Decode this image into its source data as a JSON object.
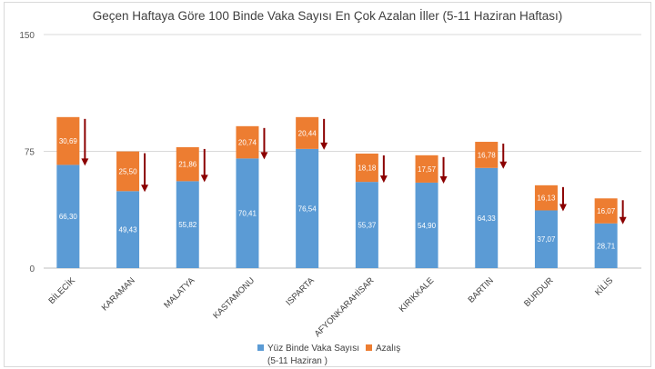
{
  "chart_data": {
    "type": "bar",
    "stacked": true,
    "title": "Geçen Haftaya Göre 100 Binde Vaka Sayısı En Çok Azalan İller (5-11 Haziran Haftası)",
    "categories": [
      "BİLECİK",
      "KARAMAN",
      "MALATYA",
      "KASTAMONU",
      "ISPARTA",
      "AFYONKARAHİSAR",
      "KIRIKKALE",
      "BARTIN",
      "BURDUR",
      "KİLİS"
    ],
    "series": [
      {
        "name": "Yüz Binde Vaka Sayısı",
        "name_line2": "(5-11 Haziran )",
        "color": "#5b9bd5",
        "values": [
          66.3,
          49.43,
          55.82,
          70.41,
          76.54,
          55.37,
          54.9,
          64.33,
          37.07,
          28.71
        ],
        "labels": [
          "66,30",
          "49,43",
          "55,82",
          "70,41",
          "76,54",
          "55,37",
          "54,90",
          "64,33",
          "37,07",
          "28,71"
        ]
      },
      {
        "name": "Azalış",
        "color": "#ed7d31",
        "values": [
          30.69,
          25.5,
          21.86,
          20.74,
          20.44,
          18.18,
          17.57,
          16.78,
          16.13,
          16.07
        ],
        "labels": [
          "30,69",
          "25,50",
          "21,86",
          "20,74",
          "20,44",
          "18,18",
          "17,57",
          "16,78",
          "16,13",
          "16,07"
        ]
      }
    ],
    "yticks": [
      "0",
      "75",
      "150"
    ],
    "ylim": [
      0,
      150
    ],
    "grid": true,
    "arrow_color": "#8b0000",
    "legend_position": "bottom"
  }
}
